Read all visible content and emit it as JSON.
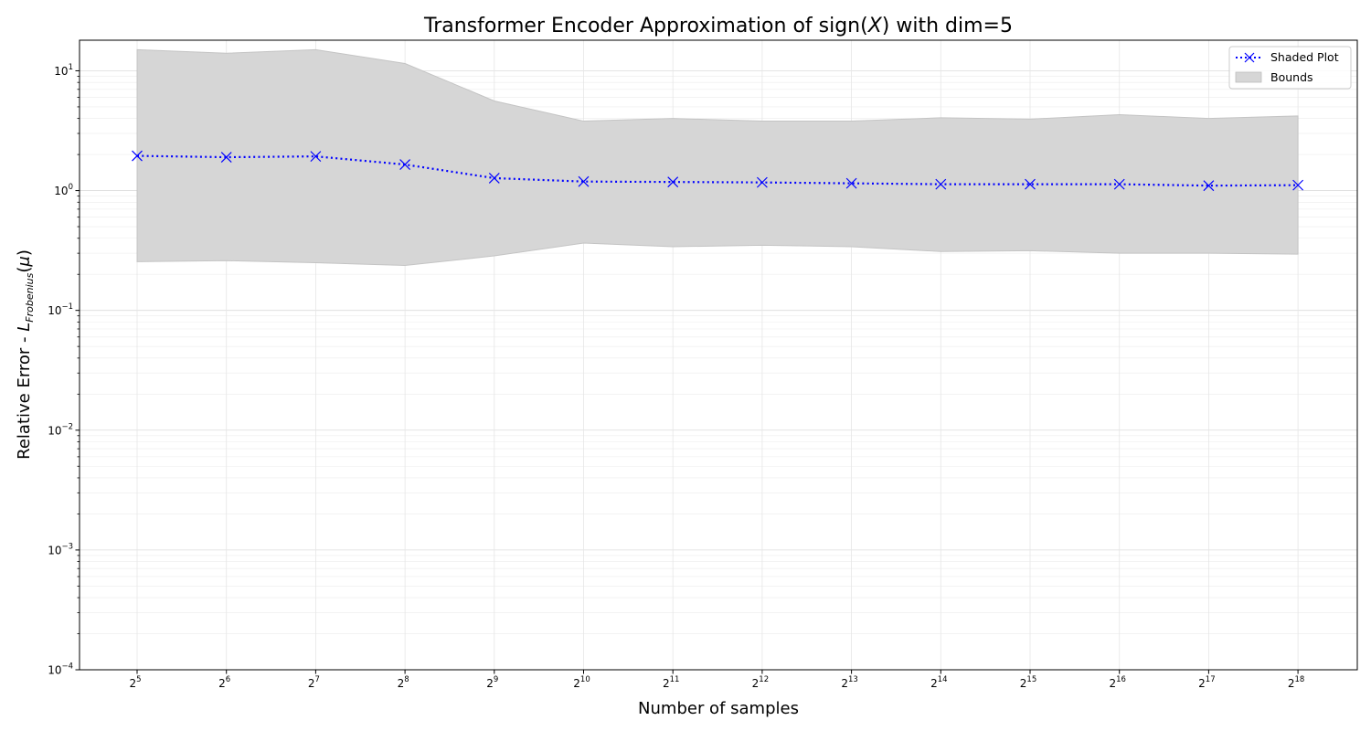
{
  "chart_data": {
    "type": "line",
    "title_prefix": "Transformer Encoder Approximation of sign(",
    "title_var": "X",
    "title_suffix": ")  with dim=5",
    "xlabel": "Number of samples",
    "ylabel_prefix": "Relative Error - ",
    "ylabel_L": "L",
    "ylabel_sub": "Frobenius",
    "ylabel_paren_open": "(",
    "ylabel_mu": "μ",
    "ylabel_paren_close": ")",
    "y_scale": "log",
    "ylim": [
      0.0001,
      18
    ],
    "x_exponents": [
      5,
      6,
      7,
      8,
      9,
      10,
      11,
      12,
      13,
      14,
      15,
      16,
      17,
      18
    ],
    "x_tick_base": "2",
    "y_tick_base": "10",
    "y_tick_exponents": [
      "−4",
      "−3",
      "−2",
      "−1",
      "0",
      "1"
    ],
    "grid": true,
    "legend_position": "top-right",
    "series": [
      {
        "name": "Shaded Plot",
        "color": "#0000ff",
        "marker": "x",
        "linestyle": "dotted",
        "values": [
          1.95,
          1.9,
          1.93,
          1.65,
          1.27,
          1.19,
          1.18,
          1.17,
          1.15,
          1.13,
          1.13,
          1.13,
          1.1,
          1.11
        ]
      }
    ],
    "bounds": {
      "name": "Bounds",
      "color": "#d6d6d6",
      "upper": [
        15,
        14,
        15,
        11.5,
        5.6,
        3.8,
        4.0,
        3.8,
        3.8,
        4.05,
        3.95,
        4.3,
        4.0,
        4.2
      ],
      "lower": [
        0.255,
        0.26,
        0.25,
        0.237,
        0.285,
        0.365,
        0.34,
        0.35,
        0.34,
        0.31,
        0.315,
        0.3,
        0.3,
        0.295
      ]
    }
  }
}
